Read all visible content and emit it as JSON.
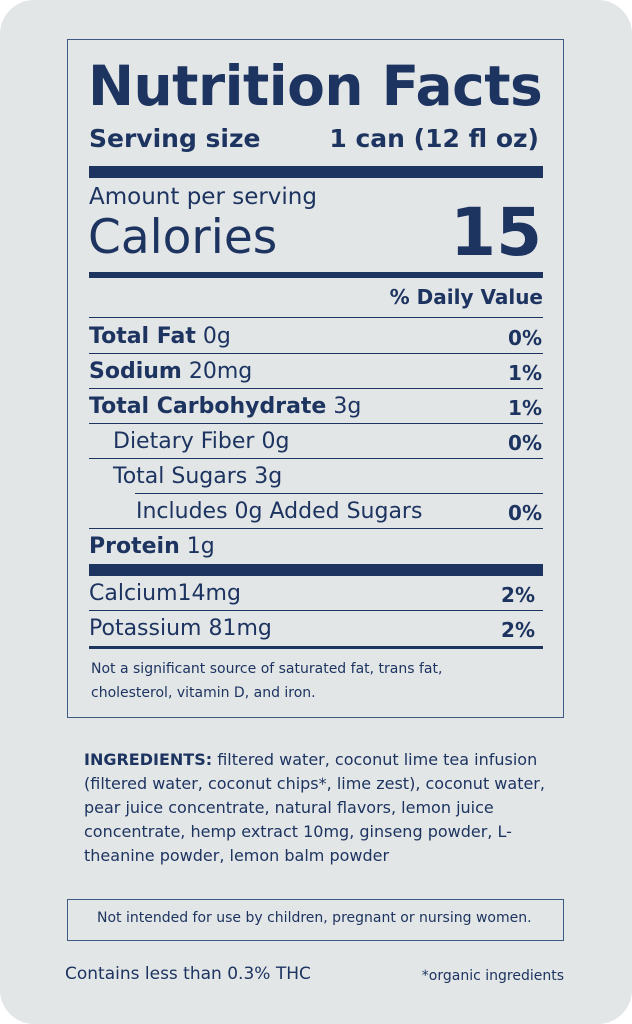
{
  "colors": {
    "ink": "#1d3461",
    "card": "#e3e6e6"
  },
  "label": {
    "title": "Nutrition Facts",
    "serving_size_label": "Serving size",
    "serving_size_value": "1 can (12 fl oz)",
    "amount_per_serving": "Amount per serving",
    "calories_label": "Calories",
    "calories_value": "15",
    "daily_value_header": "% Daily Value",
    "nutrients": [
      {
        "name": "Total Fat",
        "amount": "0g",
        "dv": "0%"
      },
      {
        "name": "Sodium",
        "amount": "20mg",
        "dv": "1%"
      },
      {
        "name": "Total Carbohydrate",
        "amount": "3g",
        "dv": "1%"
      },
      {
        "name": "Dietary Fiber 0g",
        "dv": "0%"
      },
      {
        "name": "Total Sugars 3g"
      },
      {
        "name": "Includes 0g Added Sugars",
        "dv": "0%"
      },
      {
        "name": "Protein",
        "amount": "1g"
      }
    ],
    "minerals": [
      {
        "name": "Calcium",
        "amount": "14mg",
        "dv": "2%"
      },
      {
        "name": "Potassium",
        "amount": "81mg",
        "dv": "2%"
      }
    ],
    "footnote": "Not a significant source of saturated fat, trans fat, cholesterol, vitamin D, and iron."
  },
  "ingredients": {
    "heading": "INGREDIENTS:",
    "text": " filtered water, coconut lime tea infusion (filtered water, coconut chips*, lime zest), coconut water, pear juice concentrate, natural flavors, lemon juice concentrate,  hemp extract 10mg,  ginseng powder, L-theanine powder, lemon balm powder"
  },
  "warning": "Not intended for use by children, pregnant or nursing women.",
  "thc_note": "Contains less than 0.3% THC",
  "organic_note": "*organic ingredients"
}
